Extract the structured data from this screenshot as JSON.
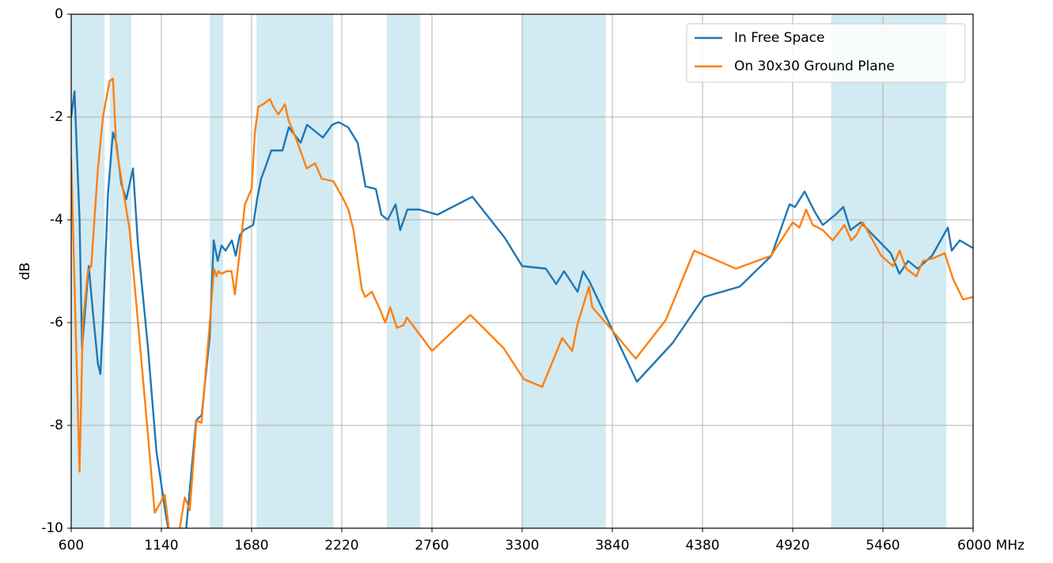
{
  "chart_data": {
    "type": "line",
    "ylabel": "dB",
    "xlim": [
      600,
      6000
    ],
    "ylim": [
      -10,
      0
    ],
    "xticks": [
      600,
      1140,
      1680,
      2220,
      2760,
      3300,
      3840,
      4380,
      4920,
      5460,
      {
        "value": 6000,
        "label": "6000 MHz"
      }
    ],
    "yticks": [
      0,
      -2,
      -4,
      -6,
      -8,
      -10
    ],
    "grid": true,
    "legend": "upper right",
    "shaded_ranges": [
      [
        600,
        800
      ],
      [
        830,
        960
      ],
      [
        1430,
        1510
      ],
      [
        1710,
        2170
      ],
      [
        2490,
        2690
      ],
      [
        3300,
        3800
      ],
      [
        5150,
        5840
      ]
    ],
    "shade_color": "#add8e6",
    "series": [
      {
        "name": "In Free Space",
        "color": "#1f77b4",
        "x": [
          600,
          620,
          650,
          665,
          690,
          705,
          730,
          760,
          775,
          790,
          820,
          850,
          870,
          900,
          930,
          970,
          1000,
          1060,
          1110,
          1160,
          1200,
          1280,
          1348,
          1381,
          1429,
          1453,
          1477,
          1500,
          1524,
          1562,
          1585,
          1609,
          1633,
          1690,
          1713,
          1737,
          1760,
          1798,
          1865,
          1903,
          1974,
          2012,
          2107,
          2163,
          2201,
          2258,
          2315,
          2362,
          2424,
          2457,
          2495,
          2542,
          2570,
          2613,
          2684,
          2793,
          3002,
          3196,
          3300,
          3442,
          3504,
          3551,
          3632,
          3665,
          3703,
          3987,
          4200,
          4389,
          4603,
          4792,
          4901,
          4934,
          4991,
          5053,
          5100,
          5176,
          5223,
          5266,
          5327,
          5507,
          5559,
          5611,
          5668,
          5754,
          5849,
          5872,
          5920,
          6000
        ],
        "values": [
          -2.0,
          -1.5,
          -4.0,
          -6.5,
          -5.5,
          -4.9,
          -5.8,
          -6.8,
          -7.0,
          -6.0,
          -3.5,
          -2.3,
          -2.5,
          -3.3,
          -3.6,
          -3.0,
          -4.5,
          -6.5,
          -8.5,
          -9.6,
          -10.4,
          -10.3,
          -7.9,
          -7.8,
          -6.3,
          -4.4,
          -4.8,
          -4.5,
          -4.6,
          -4.4,
          -4.7,
          -4.3,
          -4.2,
          -4.1,
          -3.6,
          -3.2,
          -3.0,
          -2.65,
          -2.65,
          -2.2,
          -2.5,
          -2.15,
          -2.4,
          -2.15,
          -2.1,
          -2.2,
          -2.5,
          -3.35,
          -3.4,
          -3.9,
          -4.0,
          -3.7,
          -4.2,
          -3.8,
          -3.8,
          -3.9,
          -3.55,
          -4.35,
          -4.9,
          -4.95,
          -5.25,
          -5.0,
          -5.4,
          -5.0,
          -5.2,
          -7.15,
          -6.4,
          -5.5,
          -5.3,
          -4.7,
          -3.7,
          -3.75,
          -3.45,
          -3.85,
          -4.1,
          -3.9,
          -3.75,
          -4.2,
          -4.05,
          -4.65,
          -5.05,
          -4.8,
          -4.95,
          -4.7,
          -4.15,
          -4.6,
          -4.4,
          -4.55
        ]
      },
      {
        "name": "On 30x30 Ground Plane",
        "color": "#ff7f0e",
        "x": [
          600,
          630,
          650,
          670,
          700,
          720,
          760,
          790,
          830,
          850,
          870,
          900,
          950,
          1000,
          1060,
          1100,
          1160,
          1185,
          1220,
          1250,
          1280,
          1310,
          1350,
          1380,
          1430,
          1455,
          1470,
          1480,
          1500,
          1530,
          1560,
          1580,
          1610,
          1640,
          1680,
          1700,
          1720,
          1750,
          1790,
          1810,
          1840,
          1880,
          1900,
          1950,
          2010,
          2060,
          2100,
          2170,
          2230,
          2260,
          2290,
          2340,
          2360,
          2400,
          2450,
          2480,
          2510,
          2550,
          2590,
          2610,
          2760,
          2990,
          3190,
          3310,
          3420,
          3540,
          3600,
          3630,
          3700,
          3720,
          3800,
          3980,
          4160,
          4330,
          4580,
          4790,
          4920,
          4960,
          5000,
          5040,
          5100,
          5160,
          5230,
          5270,
          5300,
          5340,
          5450,
          5520,
          5560,
          5600,
          5660,
          5700,
          5760,
          5830,
          5880,
          5940,
          6000
        ],
        "values": [
          -2.8,
          -6.5,
          -8.9,
          -6.0,
          -5.0,
          -4.9,
          -3.0,
          -2.0,
          -1.3,
          -1.25,
          -2.6,
          -3.2,
          -4.2,
          -6.0,
          -8.2,
          -9.7,
          -9.35,
          -10.0,
          -10.3,
          -10.0,
          -9.4,
          -9.65,
          -7.9,
          -7.95,
          -6.0,
          -4.95,
          -5.1,
          -5.0,
          -5.05,
          -5.0,
          -5.0,
          -5.45,
          -4.6,
          -3.7,
          -3.4,
          -2.3,
          -1.8,
          -1.75,
          -1.65,
          -1.8,
          -1.95,
          -1.75,
          -2.05,
          -2.45,
          -3.0,
          -2.9,
          -3.2,
          -3.25,
          -3.6,
          -3.8,
          -4.2,
          -5.35,
          -5.5,
          -5.4,
          -5.75,
          -6.0,
          -5.7,
          -6.1,
          -6.05,
          -5.9,
          -6.55,
          -5.85,
          -6.5,
          -7.1,
          -7.25,
          -6.3,
          -6.55,
          -6.05,
          -5.3,
          -5.7,
          -6.0,
          -6.7,
          -5.95,
          -4.6,
          -4.95,
          -4.7,
          -4.05,
          -4.15,
          -3.8,
          -4.1,
          -4.2,
          -4.4,
          -4.1,
          -4.4,
          -4.3,
          -4.05,
          -4.7,
          -4.9,
          -4.6,
          -4.95,
          -5.1,
          -4.8,
          -4.75,
          -4.65,
          -5.15,
          -5.55,
          -5.5
        ]
      }
    ]
  }
}
